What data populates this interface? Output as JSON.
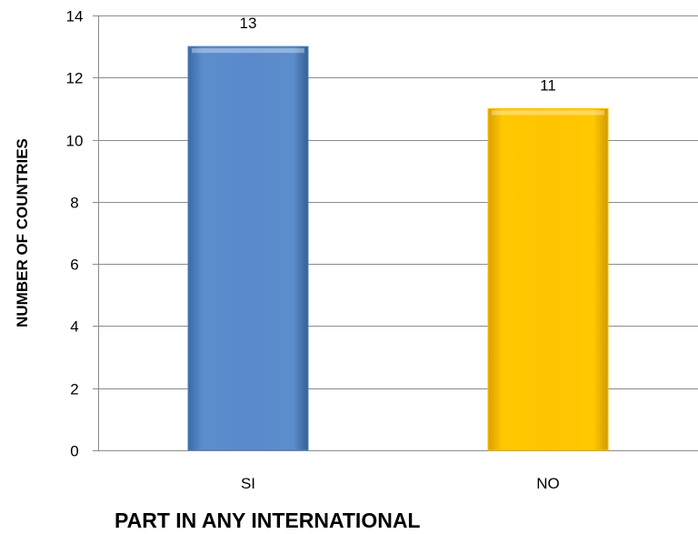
{
  "chart_data": {
    "type": "bar",
    "categories": [
      "SI",
      "NO"
    ],
    "values": [
      13,
      11
    ],
    "data_labels": [
      "13",
      "11"
    ],
    "colors": [
      "#4f81bd",
      "#ffc000"
    ],
    "title": "",
    "xlabel": "PART IN ANY INTERNATIONAL",
    "ylabel": "NUMBER OF COUNTRIES",
    "ylim": [
      0,
      14
    ],
    "yticks": [
      0,
      2,
      4,
      6,
      8,
      10,
      12,
      14
    ],
    "grid": true,
    "legend": "none"
  }
}
